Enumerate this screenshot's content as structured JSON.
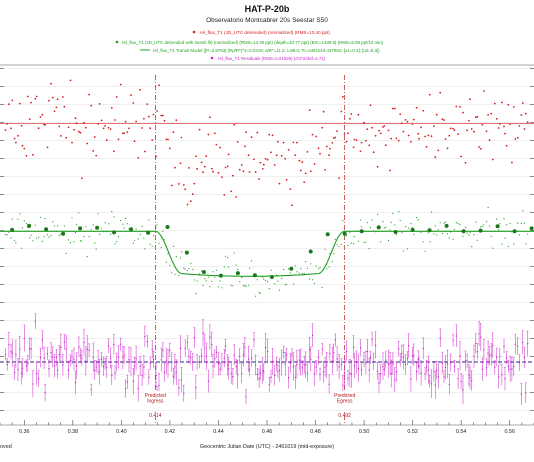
{
  "chart_data": {
    "type": "scatter",
    "title": "HAT-P-20b",
    "subtitle": "Observatorio Montcabrer 20s  Seestar S50",
    "xlabel": "Geocentric Julian Date (UTC) - 2461019 (mid-exposure)",
    "left_edge_label": "oved",
    "xlim": [
      0.35,
      0.57
    ],
    "ylim": [
      0,
      100
    ],
    "x_ticks": [
      "0.36",
      "0.38",
      "0.40",
      "0.42",
      "0.44",
      "0.46",
      "0.48",
      "0.50",
      "0.52",
      "0.54",
      "0.56"
    ],
    "legend": [
      {
        "text": "rel_flux_T1 (JD_UTC detrended) (normalized) (RMS=13.40 ppt)",
        "color": "#d42020"
      },
      {
        "text": "rel_flux_T1 (JD_UTC detrended with transit fit) (normalized) (RMS=14.30 ppt) (depth=40.77 ppt) (BIC=1339.9) (RMS=5.08 ppt/10 min)",
        "color": "#21a021"
      },
      {
        "text": "rel_flux_T1 Transit Model ([P=2.8753] (Rp/R*)^2=0.0219; a/R*=11.2; i=89.0; Tc=2461019.437962; [u1=0.3]; [u2=0.3])",
        "color": "#21a021"
      },
      {
        "text": "rel_flux_T1 Residuals (RMS=0.01629) (chi^2/dof=4.71)",
        "color": "#cc22cc"
      }
    ],
    "ingress": {
      "label": "Predicted Ingress",
      "value": "0.414",
      "x": 0.414
    },
    "egress": {
      "label": "Predicted Egress",
      "value": "0.492",
      "x": 0.492
    },
    "colors": {
      "detrended": "#d42020",
      "transit": "#21a021",
      "residuals": "#cc22cc",
      "ingress_egress": "#b01818",
      "zero_line": "#2a2a8a"
    },
    "series": [
      {
        "name": "rel_flux_T1 (JD_UTC detrended) (normalized)",
        "baseline": 83.7,
        "depth": 10.2,
        "scatter": 5.5,
        "tc": 0.453,
        "t14": 0.078
      },
      {
        "name": "rel_flux_T1 Transit Model",
        "baseline": 53.8,
        "depth": 12.5,
        "tc": 0.453,
        "t14": 0.078
      },
      {
        "name": "rel_flux_T1 Residuals",
        "baseline": 17.5,
        "scatter": 3.8
      }
    ],
    "binned_points": [
      {
        "x": 0.355,
        "y": 54.2
      },
      {
        "x": 0.362,
        "y": 55.3
      },
      {
        "x": 0.369,
        "y": 54.4
      },
      {
        "x": 0.376,
        "y": 53.1
      },
      {
        "x": 0.383,
        "y": 54.6
      },
      {
        "x": 0.39,
        "y": 54.8
      },
      {
        "x": 0.397,
        "y": 53.5
      },
      {
        "x": 0.404,
        "y": 54.4
      },
      {
        "x": 0.411,
        "y": 53.4
      },
      {
        "x": 0.419,
        "y": 55.0
      },
      {
        "x": 0.427,
        "y": 47.9
      },
      {
        "x": 0.434,
        "y": 42.5
      },
      {
        "x": 0.441,
        "y": 41.5
      },
      {
        "x": 0.448,
        "y": 42.2
      },
      {
        "x": 0.455,
        "y": 41.6
      },
      {
        "x": 0.462,
        "y": 41.1
      },
      {
        "x": 0.47,
        "y": 43.4
      },
      {
        "x": 0.478,
        "y": 48.2
      },
      {
        "x": 0.485,
        "y": 53.0
      },
      {
        "x": 0.492,
        "y": 53.1
      },
      {
        "x": 0.499,
        "y": 53.8
      },
      {
        "x": 0.506,
        "y": 54.9
      },
      {
        "x": 0.513,
        "y": 53.6
      },
      {
        "x": 0.52,
        "y": 54.2
      },
      {
        "x": 0.527,
        "y": 54.1
      },
      {
        "x": 0.534,
        "y": 55.3
      },
      {
        "x": 0.541,
        "y": 53.8
      },
      {
        "x": 0.548,
        "y": 54.0
      },
      {
        "x": 0.555,
        "y": 55.2
      },
      {
        "x": 0.562,
        "y": 53.8
      },
      {
        "x": 0.569,
        "y": 54.6
      }
    ]
  }
}
